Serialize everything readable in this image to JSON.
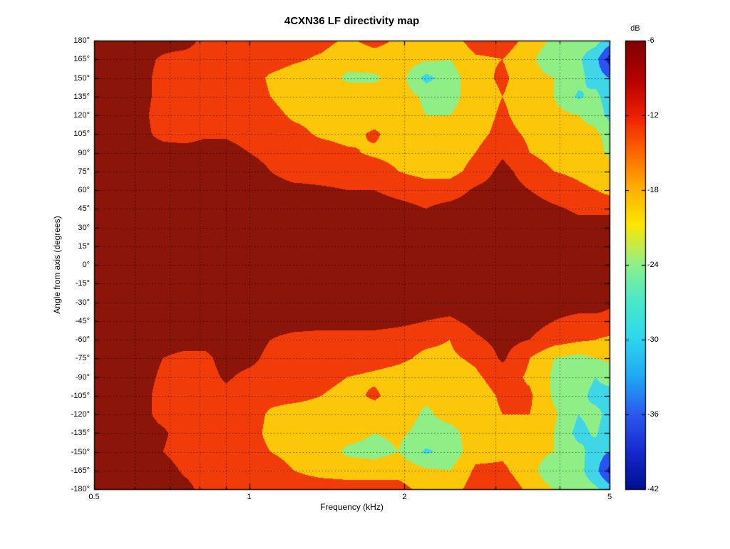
{
  "figure": {
    "background": "#ffffff"
  },
  "chart_data": {
    "type": "heatmap",
    "title": "4CXN36 LF directivity map",
    "xlabel": "Frequency (kHz)",
    "ylabel": "Angle from axis (degrees)",
    "x_scale": "log",
    "x_range_khz": [
      0.5,
      5
    ],
    "x_major_ticks": [
      0.5,
      1,
      2,
      5
    ],
    "x_tick_labels": [
      "0.5",
      "1",
      "2",
      "5"
    ],
    "x_minor_ticks": [
      0.6,
      0.7,
      0.8,
      0.9,
      3,
      4
    ],
    "x_gridlines": [
      0.6,
      0.7,
      0.8,
      0.9,
      1,
      2,
      3,
      4
    ],
    "y_range_deg": [
      -180,
      180
    ],
    "y_tick_step_deg": 15,
    "y_tick_labels": [
      "180°",
      "165°",
      "150°",
      "135°",
      "120°",
      "105°",
      "90°",
      "75°",
      "60°",
      "45°",
      "30°",
      "15°",
      "0°",
      "-15°",
      "-30°",
      "-45°",
      "-60°",
      "-75°",
      "-90°",
      "-105°",
      "-120°",
      "-135°",
      "-150°",
      "-165°",
      "-180°"
    ],
    "grid_style": "dotted",
    "colorbar": {
      "label": "dB",
      "min": -42,
      "max": -6,
      "ticks": [
        -6,
        -12,
        -18,
        -24,
        -30,
        -36,
        -42
      ],
      "tick_labels": [
        "-6",
        "-12",
        "-18",
        "-24",
        "-30",
        "-36",
        "-42"
      ],
      "jet_stops": [
        [
          0.0,
          "#7f0000"
        ],
        [
          0.09,
          "#b80000"
        ],
        [
          0.17,
          "#f02000"
        ],
        [
          0.25,
          "#ff6700"
        ],
        [
          0.33,
          "#ffb000"
        ],
        [
          0.41,
          "#ffe600"
        ],
        [
          0.5,
          "#8df08c"
        ],
        [
          0.58,
          "#4ae9c9"
        ],
        [
          0.66,
          "#2fd8ee"
        ],
        [
          0.75,
          "#1fa8f5"
        ],
        [
          0.83,
          "#2b5cf0"
        ],
        [
          0.92,
          "#1528cc"
        ],
        [
          1.0,
          "#001090"
        ]
      ]
    },
    "contour_levels_db": [
      -42,
      -36,
      -30,
      -24,
      -18,
      -12,
      -6,
      0
    ],
    "band_colors_high_to_low": [
      "#8b1508",
      "#f13c0a",
      "#fcc708",
      "#8fee86",
      "#3fd6e8",
      "#2a52f0",
      "#1322c8"
    ],
    "grid": {
      "frequencies_khz": [
        0.5,
        0.6,
        0.68,
        0.75,
        0.82,
        0.9,
        1.0,
        1.1,
        1.22,
        1.38,
        1.55,
        1.75,
        1.95,
        2.2,
        2.45,
        2.75,
        3.1,
        3.5,
        3.9,
        4.35,
        4.7,
        5.0
      ],
      "angles_deg": [
        180,
        165,
        150,
        135,
        120,
        105,
        90,
        75,
        60,
        45,
        30,
        15,
        0,
        -15,
        -30,
        -45,
        -60,
        -75,
        -90,
        -105,
        -120,
        -135,
        -150,
        -165,
        -180
      ],
      "values_db": [
        [
          -3,
          -3,
          -3,
          -3,
          -8,
          -9,
          -9,
          -9,
          -9,
          -10,
          -13,
          -10,
          -13,
          -15,
          -15,
          -9,
          -9,
          -14,
          -19,
          -21,
          -22,
          -27
        ],
        [
          -3,
          -3,
          -7,
          -9,
          -9,
          -9,
          -9,
          -9,
          -11,
          -13,
          -16,
          -15,
          -15,
          -17,
          -18,
          -13,
          -12,
          -16,
          -24,
          -23,
          -28,
          -39
        ],
        [
          -3,
          -3,
          -8,
          -9,
          -9,
          -9,
          -9,
          -13,
          -15,
          -15,
          -19,
          -19,
          -15,
          -26,
          -21,
          -14,
          -11,
          -15,
          -18,
          -22,
          -27,
          -30
        ],
        [
          -3,
          -3,
          -8,
          -9,
          -9,
          -9,
          -9,
          -12,
          -15,
          -15,
          -15,
          -15,
          -15,
          -19,
          -20,
          -15,
          -12,
          -15,
          -18,
          -25,
          -22,
          -28
        ],
        [
          -3,
          -3,
          -9,
          -9,
          -9,
          -9,
          -9,
          -10,
          -13,
          -14,
          -15,
          -15,
          -15,
          -18,
          -18,
          -15,
          -11,
          -15,
          -16,
          -18,
          -20,
          -26
        ],
        [
          -3,
          -3,
          -8,
          -9,
          -7,
          -7,
          -9,
          -9,
          -10,
          -13,
          -14,
          -11,
          -15,
          -15,
          -16,
          -14,
          -10,
          -13,
          -15,
          -16,
          -17,
          -20
        ],
        [
          -3,
          -3,
          -3,
          -3,
          -3,
          -3,
          -6,
          -8,
          -9,
          -9,
          -11,
          -13,
          -14,
          -15,
          -15,
          -12,
          -7,
          -12,
          -14,
          -15,
          -16,
          -19
        ],
        [
          -3,
          -3,
          -3,
          -3,
          -3,
          -3,
          -3,
          -6,
          -9,
          -9,
          -9,
          -9,
          -12,
          -14,
          -14,
          -10,
          -4,
          -9,
          -12,
          -13,
          -14,
          -16
        ],
        [
          -3,
          -3,
          -3,
          -3,
          -3,
          -3,
          -3,
          -3,
          -4,
          -5,
          -6,
          -6,
          -8,
          -9,
          -9,
          -5,
          -3,
          -6,
          -9,
          -11,
          -12,
          -14
        ],
        [
          -3,
          -3,
          -3,
          -3,
          -3,
          -3,
          -3,
          -3,
          -3,
          -3,
          -3,
          -3,
          -4,
          -6,
          -4,
          -3,
          -3,
          -3,
          -5,
          -7,
          -7,
          -7
        ],
        [
          -3,
          -3,
          -3,
          -3,
          -3,
          -3,
          -3,
          -3,
          -3,
          -3,
          -3,
          -3,
          -3,
          -3,
          -3,
          -3,
          -3,
          -3,
          -3,
          -4,
          -4,
          -4
        ],
        [
          -3,
          -3,
          -3,
          -3,
          -3,
          -3,
          -3,
          -3,
          -3,
          -3,
          -3,
          -3,
          -3,
          -3,
          -3,
          -3,
          -3,
          -3,
          -3,
          -3,
          -3,
          -3
        ],
        [
          -3,
          -3,
          -3,
          -3,
          -3,
          -3,
          -3,
          -3,
          -3,
          -3,
          -3,
          -3,
          -3,
          -3,
          -3,
          -3,
          -3,
          -3,
          -3,
          -3,
          -3,
          -3
        ],
        [
          -3,
          -3,
          -3,
          -3,
          -3,
          -3,
          -3,
          -3,
          -3,
          -3,
          -3,
          -3,
          -3,
          -3,
          -3,
          -3,
          -3,
          -3,
          -3,
          -3,
          -3,
          -3
        ],
        [
          -3,
          -3,
          -3,
          -3,
          -3,
          -3,
          -3,
          -3,
          -3,
          -3,
          -3,
          -3,
          -3,
          -3,
          -3,
          -3,
          -3,
          -3,
          -3,
          -3,
          -3,
          -5
        ],
        [
          -3,
          -3,
          -3,
          -3,
          -3,
          -3,
          -3,
          -3,
          -3,
          -3,
          -3,
          -3,
          -4,
          -6,
          -7,
          -4,
          -3,
          -4,
          -6,
          -8,
          -8,
          -8
        ],
        [
          -3,
          -3,
          -3,
          -3,
          -3,
          -3,
          -3,
          -6,
          -8,
          -9,
          -9,
          -9,
          -10,
          -11,
          -12,
          -7,
          -4,
          -6,
          -9,
          -11,
          -12,
          -13
        ],
        [
          -3,
          -3,
          -6,
          -8,
          -8,
          -3,
          -4,
          -8,
          -9,
          -9,
          -9,
          -10,
          -11,
          -13,
          -13,
          -11,
          -5,
          -12,
          -18,
          -20,
          -18,
          -17
        ],
        [
          -3,
          -3,
          -7,
          -9,
          -9,
          -5,
          -8,
          -9,
          -9,
          -10,
          -12,
          -13,
          -14,
          -15,
          -15,
          -13,
          -9,
          -13,
          -19,
          -21,
          -24,
          -21
        ],
        [
          -3,
          -3,
          -8,
          -9,
          -9,
          -8,
          -9,
          -10,
          -10,
          -12,
          -14,
          -11,
          -15,
          -17,
          -16,
          -15,
          -11,
          -11,
          -19,
          -22,
          -26,
          -27
        ],
        [
          -3,
          -3,
          -8,
          -9,
          -9,
          -9,
          -9,
          -13,
          -15,
          -15,
          -15,
          -15,
          -15,
          -19,
          -16,
          -15,
          -12,
          -12,
          -17,
          -24,
          -22,
          -26
        ],
        [
          -3,
          -3,
          -5,
          -9,
          -9,
          -9,
          -9,
          -14,
          -15,
          -15,
          -16,
          -18,
          -17,
          -20,
          -20,
          -15,
          -12,
          -15,
          -18,
          -26,
          -23,
          -29
        ],
        [
          -3,
          -3,
          -6,
          -9,
          -9,
          -9,
          -9,
          -12,
          -14,
          -15,
          -19,
          -20,
          -18,
          -25,
          -22,
          -14,
          -13,
          -15,
          -18,
          -22,
          -27,
          -30
        ],
        [
          -3,
          -3,
          -3,
          -7,
          -9,
          -9,
          -9,
          -9,
          -12,
          -14,
          -15,
          -15,
          -14,
          -17,
          -18,
          -11,
          -11,
          -15,
          -24,
          -22,
          -28,
          -38
        ],
        [
          -3,
          -3,
          -3,
          -4,
          -8,
          -9,
          -9,
          -9,
          -9,
          -9,
          -9,
          -9,
          -10,
          -14,
          -15,
          -9,
          -9,
          -13,
          -18,
          -21,
          -23,
          -27
        ]
      ]
    }
  }
}
